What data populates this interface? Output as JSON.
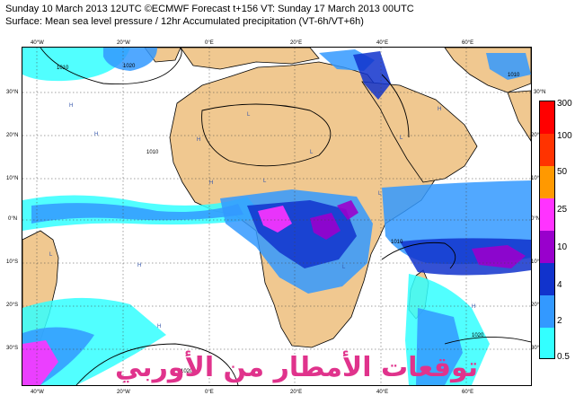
{
  "header": {
    "line1": "Sunday 10 March 2013 12UTC ©ECMWF Forecast t+156 VT: Sunday 17 March 2013 00UTC",
    "line2": "Surface: Mean sea level pressure / 12hr Accumulated precipitation (VT-6h/VT+6h)"
  },
  "axes": {
    "lon_top": [
      "40°W",
      "20°W",
      "0°E",
      "20°E",
      "40°E",
      "60°E"
    ],
    "lon_bottom": [
      "40°W",
      "20°W",
      "0°E",
      "20°E",
      "40°E",
      "60°E"
    ],
    "lat_left": [
      "30°N",
      "20°N",
      "10°N",
      "0°N",
      "10°S",
      "20°S",
      "30°S"
    ],
    "lat_right": [
      "30°N",
      "20°N",
      "10°N",
      "0°N",
      "10°S",
      "20°S",
      "30°S"
    ]
  },
  "colorbar": {
    "labels": [
      "300",
      "100",
      "50",
      "25",
      "10",
      "4",
      "2",
      "0.5"
    ],
    "colors": [
      "#ff0000",
      "#ff3300",
      "#ff9900",
      "#ff33ff",
      "#9900cc",
      "#1133cc",
      "#3399ff",
      "#33ffff"
    ]
  },
  "isobars": {
    "labels": [
      "1010",
      "1020",
      "1010",
      "1010",
      "1010",
      "1020",
      "1020"
    ]
  },
  "pressure_centres": [
    "H",
    "H",
    "H",
    "L",
    "L",
    "H",
    "L",
    "H",
    "H",
    "L",
    "H",
    "L",
    "H",
    "L",
    "L"
  ],
  "colors": {
    "land": "#f0c890",
    "ocean": "#ffffff",
    "grid": "#444444"
  },
  "watermark": {
    "text": "توقعات الأمطار من الأوربي"
  }
}
